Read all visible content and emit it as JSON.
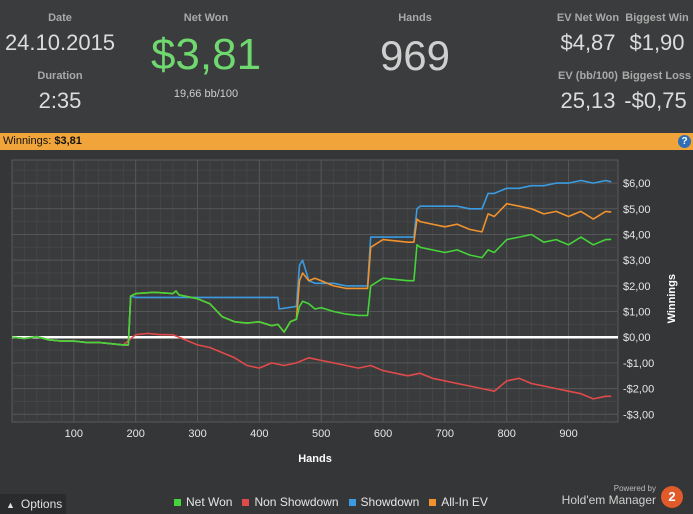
{
  "stats": {
    "date_label": "Date",
    "date_value": "24.10.2015",
    "duration_label": "Duration",
    "duration_value": "2:35",
    "net_won_label": "Net Won",
    "net_won_value": "$3,81",
    "net_won_sub": "19,66 bb/100",
    "hands_label": "Hands",
    "hands_value": "969",
    "ev_net_won_label": "EV Net Won",
    "ev_net_won_value": "$4,87",
    "biggest_win_label": "Biggest Win",
    "biggest_win_value": "$1,90",
    "ev_bb_label": "EV (bb/100)",
    "ev_bb_value": "25,13",
    "biggest_loss_label": "Biggest Loss",
    "biggest_loss_value": "-$0,75"
  },
  "winbar": {
    "label": "Winnings:",
    "value": "$3,81",
    "help_icon": "help-icon",
    "help_glyph": "?"
  },
  "colors": {
    "net_won": "#45d43a",
    "non_showdown": "#e04a4a",
    "showdown": "#3b9be0",
    "all_in_ev": "#f0922e",
    "accent_bar": "#f0a43a",
    "net_won_text": "#6fd86f"
  },
  "chart_data": {
    "type": "line",
    "xlabel": "Hands",
    "ylabel": "Winnings",
    "xlim": [
      0,
      980
    ],
    "ylim": [
      -3.3,
      6.9
    ],
    "x_ticks": [
      100,
      200,
      300,
      400,
      500,
      600,
      700,
      800,
      900
    ],
    "x_tick_labels": [
      "100",
      "200",
      "300",
      "400",
      "500",
      "600",
      "700",
      "800",
      "900"
    ],
    "y_ticks": [
      -3,
      -2,
      -1,
      0,
      1,
      2,
      3,
      4,
      5,
      6
    ],
    "y_tick_labels": [
      "-$3,00",
      "-$2,00",
      "-$1,00",
      "$0,00",
      "$1,00",
      "$2,00",
      "$3,00",
      "$4,00",
      "$5,00",
      "$6,00"
    ],
    "grid": true,
    "legend_position": "bottom",
    "series": [
      {
        "name": "Net Won",
        "x": [
          0,
          20,
          40,
          60,
          80,
          100,
          120,
          140,
          160,
          180,
          188,
          192,
          200,
          230,
          260,
          265,
          270,
          300,
          320,
          340,
          360,
          380,
          400,
          420,
          430,
          440,
          450,
          460,
          465,
          470,
          480,
          490,
          500,
          520,
          540,
          560,
          575,
          580,
          600,
          640,
          650,
          655,
          660,
          700,
          720,
          740,
          760,
          770,
          780,
          800,
          820,
          840,
          860,
          880,
          900,
          920,
          940,
          960,
          969
        ],
        "y": [
          0.0,
          -0.05,
          0.02,
          -0.1,
          -0.15,
          -0.15,
          -0.2,
          -0.2,
          -0.25,
          -0.3,
          -0.3,
          1.6,
          1.7,
          1.75,
          1.7,
          1.8,
          1.65,
          1.5,
          1.3,
          0.8,
          0.6,
          0.55,
          0.6,
          0.45,
          0.5,
          0.2,
          0.6,
          0.7,
          1.2,
          1.4,
          1.3,
          1.1,
          1.15,
          1.0,
          0.9,
          0.85,
          0.85,
          2.0,
          2.3,
          2.2,
          2.2,
          3.6,
          3.5,
          3.3,
          3.4,
          3.2,
          3.1,
          3.4,
          3.3,
          3.8,
          3.9,
          4.0,
          3.7,
          3.8,
          3.6,
          3.9,
          3.6,
          3.8,
          3.81
        ]
      },
      {
        "name": "Non Showdown",
        "x": [
          0,
          20,
          40,
          60,
          80,
          100,
          120,
          140,
          160,
          180,
          200,
          220,
          240,
          260,
          280,
          300,
          320,
          340,
          360,
          380,
          400,
          420,
          440,
          460,
          480,
          500,
          520,
          540,
          560,
          580,
          600,
          620,
          640,
          660,
          680,
          700,
          720,
          740,
          760,
          780,
          800,
          820,
          840,
          860,
          880,
          900,
          920,
          940,
          960,
          969
        ],
        "y": [
          0.0,
          -0.05,
          0.02,
          -0.1,
          -0.15,
          -0.15,
          -0.2,
          -0.2,
          -0.25,
          -0.3,
          0.1,
          0.15,
          0.1,
          0.1,
          -0.1,
          -0.3,
          -0.4,
          -0.6,
          -0.8,
          -1.1,
          -1.2,
          -1.0,
          -1.1,
          -1.0,
          -0.8,
          -0.9,
          -1.0,
          -1.1,
          -1.2,
          -1.1,
          -1.3,
          -1.4,
          -1.5,
          -1.4,
          -1.6,
          -1.7,
          -1.8,
          -1.9,
          -2.0,
          -2.1,
          -1.7,
          -1.6,
          -1.8,
          -1.9,
          -2.0,
          -2.1,
          -2.2,
          -2.4,
          -2.3,
          -2.3
        ]
      },
      {
        "name": "Showdown",
        "x": [
          0,
          20,
          40,
          60,
          80,
          100,
          120,
          140,
          160,
          180,
          188,
          192,
          200,
          300,
          430,
          432,
          460,
          465,
          470,
          480,
          490,
          500,
          520,
          540,
          560,
          575,
          580,
          600,
          640,
          650,
          655,
          660,
          700,
          720,
          740,
          760,
          770,
          780,
          800,
          820,
          840,
          860,
          880,
          900,
          920,
          940,
          960,
          969
        ],
        "y": [
          0.0,
          -0.05,
          0.02,
          -0.1,
          -0.15,
          -0.15,
          -0.2,
          -0.2,
          -0.25,
          -0.3,
          -0.3,
          1.6,
          1.55,
          1.55,
          1.55,
          1.1,
          1.2,
          2.8,
          3.0,
          2.2,
          2.1,
          2.1,
          2.1,
          2.0,
          2.0,
          2.0,
          3.9,
          3.9,
          3.9,
          3.9,
          5.0,
          5.1,
          5.1,
          5.1,
          5.0,
          5.0,
          5.6,
          5.6,
          5.8,
          5.8,
          5.9,
          5.9,
          6.0,
          6.0,
          6.1,
          6.0,
          6.1,
          6.05
        ]
      },
      {
        "name": "All-In EV",
        "x": [
          0,
          20,
          40,
          60,
          80,
          100,
          120,
          140,
          160,
          180,
          188,
          192,
          200,
          230,
          260,
          265,
          270,
          300,
          320,
          340,
          360,
          380,
          400,
          420,
          430,
          440,
          450,
          460,
          465,
          470,
          480,
          490,
          500,
          520,
          540,
          560,
          575,
          580,
          600,
          640,
          650,
          655,
          660,
          700,
          720,
          740,
          760,
          770,
          780,
          800,
          820,
          840,
          860,
          880,
          900,
          920,
          940,
          960,
          969
        ],
        "y": [
          0.0,
          -0.05,
          0.02,
          -0.1,
          -0.15,
          -0.15,
          -0.2,
          -0.2,
          -0.25,
          -0.3,
          -0.3,
          1.6,
          1.7,
          1.75,
          1.7,
          1.8,
          1.65,
          1.5,
          1.3,
          0.8,
          0.6,
          0.55,
          0.6,
          0.45,
          0.5,
          0.2,
          0.6,
          0.7,
          2.2,
          2.5,
          2.2,
          2.3,
          2.2,
          2.0,
          1.9,
          1.9,
          1.9,
          3.5,
          3.8,
          3.7,
          3.7,
          4.6,
          4.5,
          4.3,
          4.4,
          4.2,
          4.1,
          4.8,
          4.7,
          5.2,
          5.1,
          5.0,
          4.8,
          4.9,
          4.7,
          4.9,
          4.6,
          4.9,
          4.87
        ]
      }
    ]
  },
  "legend": {
    "items": [
      {
        "label": "Net Won"
      },
      {
        "label": "Non Showdown"
      },
      {
        "label": "Showdown"
      },
      {
        "label": "All-In EV"
      }
    ]
  },
  "footer": {
    "options_label": "Options",
    "options_caret": "▲",
    "powered_by": "Powered by",
    "brand": "Hold'em Manager",
    "brand_logo_glyph": "2"
  }
}
